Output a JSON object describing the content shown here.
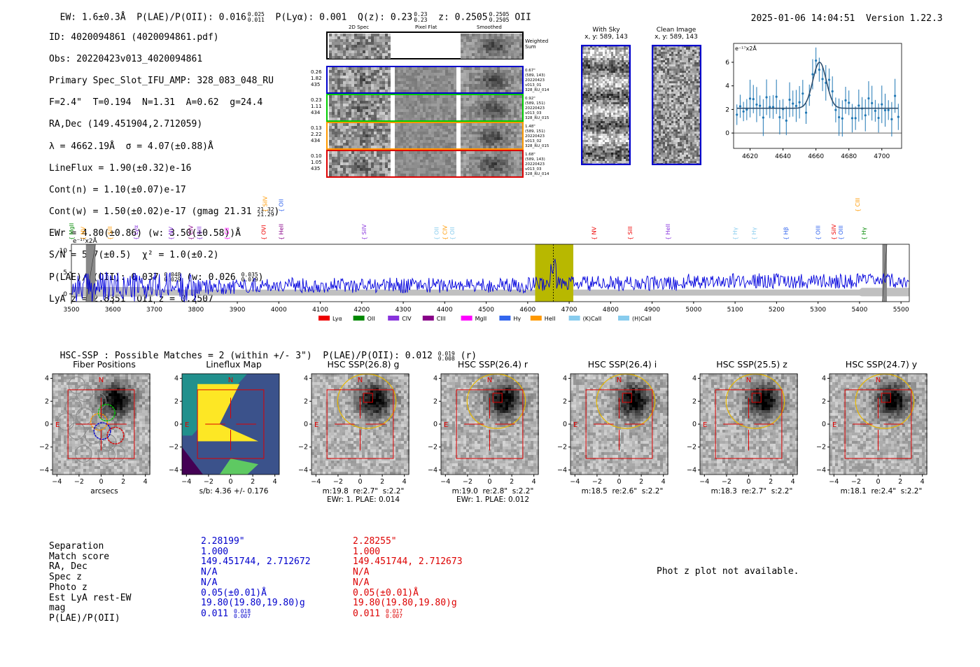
{
  "header": {
    "ew": "EW: 1.6±0.3Å",
    "plae_poii": "P(LAE)/P(OII): 0.016",
    "plae_poii_hi": "0.025",
    "plae_poii_lo": "0.011",
    "plya": "P(Lyα): 0.001",
    "qz": "Q(z): 0.23",
    "qz_hi": "0.23",
    "qz_lo": "0.23",
    "z": "z: 0.2505",
    "z_hi": "0.2505",
    "z_lo": "0.2505",
    "z_line": "OII",
    "timestamp": "2025-01-06 14:04:51",
    "version": "Version 1.22.3"
  },
  "info": {
    "id": "ID: 4020094861 (4020094861.pdf)",
    "obs": "Obs: 20220423v013_4020094861",
    "primary": "Primary Spec_Slot_IFU_AMP: 328_083_048_RU",
    "seeing": "F=2.4\"  T=0.194  N=1.31  A=0.62  g=24.4",
    "radec": "RA,Dec (149.451904,2.712059)",
    "lambda": "λ = 4662.19Å  σ = 4.07(±0.88)Å",
    "lineflux": "LineFlux = 1.90(±0.32)e-16",
    "contn": "Cont(n) = 1.10(±0.07)e-17",
    "contw": "Cont(w) = 1.50(±0.02)e-17 (gmag 21.31",
    "contw_hi": "21.32",
    "contw_lo": "21.29",
    "contw_end": ")",
    "ewr": "EWr = 4.80(±0.86) (w: 3.50(±0.58))Å",
    "sn": "S/N = 5.7(±0.5)  χ² = 1.0(±0.2)",
    "plae": "P(LAE)/P(OII): 0.037",
    "plae_hi": "0.048",
    "plae_lo": "0.029",
    "plae_w": "(w: 0.026",
    "plae_w_hi": "0.035",
    "plae_w_lo": "0.019",
    "plae_w_end": ")",
    "lyaz": "LyA z = 2.8351  OII z = 0.2507"
  },
  "cutouts": {
    "col_2d": "2D Spec",
    "col_flat": "Pixel Flat",
    "col_smooth": "Smoothed",
    "weighted": "Weighted\nSum",
    "rows": [
      {
        "left": [
          "0.26",
          "1.82",
          "435"
        ],
        "right": [
          "0.67\"",
          "(589, 143)",
          "20220423",
          "v013_01",
          "328_RU_014"
        ],
        "color": "#0000cc"
      },
      {
        "left": [
          "0.23",
          "1.11",
          "434"
        ],
        "right": [
          "0.92\"",
          "(589, 151)",
          "20220423",
          "v013_03",
          "328_RU_015"
        ],
        "color": "#00cc00"
      },
      {
        "left": [
          "0.13",
          "2.22",
          "434"
        ],
        "right": [
          "1.48\"",
          "(589, 151)",
          "20220423",
          "v013_02",
          "328_RU_015"
        ],
        "color": "#ff9900"
      },
      {
        "left": [
          "0.10",
          "1.05",
          "435"
        ],
        "right": [
          "1.68\"",
          "(589, 143)",
          "20220423",
          "v013_03",
          "328_RU_014"
        ],
        "color": "#dd0000"
      }
    ]
  },
  "sky": {
    "with_sky": "With Sky",
    "with_sky_xy": "x, y: 589, 143",
    "clean": "Clean Image",
    "clean_xy": "x, y: 589, 143"
  },
  "zoom_plot": {
    "ylabel": "e⁻¹⁷x2Å",
    "xticks": [
      "4620",
      "4640",
      "4660",
      "4680",
      "4700"
    ],
    "yticks": [
      "0",
      "2",
      "4",
      "6"
    ]
  },
  "spectrum": {
    "ylabel": "e⁻¹⁷x2Å",
    "xticks": [
      "3500",
      "3600",
      "3700",
      "3800",
      "3900",
      "4000",
      "4100",
      "4200",
      "4300",
      "4400",
      "4500",
      "4600",
      "4700",
      "4800",
      "4900",
      "5000",
      "5100",
      "5200",
      "5300",
      "5400",
      "5500"
    ],
    "yticks": [
      "0",
      "5",
      "10"
    ],
    "legend": [
      {
        "label": "Lyα",
        "color": "#ee0000"
      },
      {
        "label": "OII",
        "color": "#008800"
      },
      {
        "label": "CIV",
        "color": "#8833dd"
      },
      {
        "label": "CIII",
        "color": "#880088"
      },
      {
        "label": "MgII",
        "color": "#ff00ff"
      },
      {
        "label": "Hγ",
        "color": "#3366ee"
      },
      {
        "label": "HeII",
        "color": "#ff9900"
      },
      {
        "label": "(K)CaII",
        "color": "#88ccee"
      },
      {
        "label": "(H)CaII",
        "color": "#88ccee"
      }
    ],
    "line_labels": [
      {
        "text": "MgII",
        "wl": 3500,
        "color": "#008800",
        "row": 0
      },
      {
        "text": "NV",
        "wl": 3528,
        "color": "#ff9900",
        "row": 0
      },
      {
        "text": "SiII",
        "wl": 3593,
        "color": "#ff9900",
        "row": 0
      },
      {
        "text": "Lyα",
        "wl": 3655,
        "color": "#8833dd",
        "row": 0
      },
      {
        "text": "NV",
        "wl": 3740,
        "color": "#8833dd",
        "row": 0
      },
      {
        "text": "CIV",
        "wl": 3788,
        "color": "#880088",
        "row": 0
      },
      {
        "text": "SiII",
        "wl": 3808,
        "color": "#8833dd",
        "row": 0
      },
      {
        "text": "CII",
        "wl": 3875,
        "color": "#ff00ff",
        "row": 0
      },
      {
        "text": "OVI",
        "wl": 3963,
        "color": "#ee0000",
        "row": 0
      },
      {
        "text": "HeII",
        "wl": 4005,
        "color": "#880088",
        "row": 0
      },
      {
        "text": "SiIV",
        "wl": 3967,
        "color": "#ff9900",
        "row": 1
      },
      {
        "text": "OII",
        "wl": 4005,
        "color": "#3366ee",
        "row": 1
      },
      {
        "text": "SiIV",
        "wl": 4205,
        "color": "#8833dd",
        "row": 0
      },
      {
        "text": "OII",
        "wl": 4380,
        "color": "#88ccee",
        "row": 0
      },
      {
        "text": "CIV",
        "wl": 4400,
        "color": "#ff9900",
        "row": 0
      },
      {
        "text": "OII",
        "wl": 4418,
        "color": "#88ccee",
        "row": 0
      },
      {
        "text": "NV",
        "wl": 4760,
        "color": "#ee0000",
        "row": 0
      },
      {
        "text": "SiII",
        "wl": 4847,
        "color": "#ee0000",
        "row": 0
      },
      {
        "text": "HeII",
        "wl": 4938,
        "color": "#8833dd",
        "row": 0
      },
      {
        "text": "Hγ",
        "wl": 5100,
        "color": "#88ccee",
        "row": 0
      },
      {
        "text": "Hγ",
        "wl": 5145,
        "color": "#88ccee",
        "row": 0
      },
      {
        "text": "Hβ",
        "wl": 5222,
        "color": "#3366ee",
        "row": 0
      },
      {
        "text": "OIII",
        "wl": 5300,
        "color": "#3366ee",
        "row": 0
      },
      {
        "text": "SiIV",
        "wl": 5338,
        "color": "#ee0000",
        "row": 0
      },
      {
        "text": "OIII",
        "wl": 5355,
        "color": "#3366ee",
        "row": 0
      },
      {
        "text": "Hγ",
        "wl": 5410,
        "color": "#008800",
        "row": 0
      },
      {
        "text": "CIII",
        "wl": 5395,
        "color": "#ff9900",
        "row": 1
      }
    ]
  },
  "hsc": {
    "matches": "HSC-SSP : Possible Matches = 2 (within +/- 3\")  P(LAE)/P(OII): 0.012",
    "matches_hi": "0.019",
    "matches_lo": "0.008",
    "matches_band": "(r)",
    "panels": [
      {
        "title": "Fiber Positions",
        "xlabel": "arcsecs",
        "xlabel2": ""
      },
      {
        "title": "Lineflux Map",
        "xlabel": "s/b: 4.36 +/- 0.176",
        "xlabel2": ""
      },
      {
        "title": "HSC SSP(26.8) g",
        "xlabel": "m:19.8  re:2.7\"  s:2.2\"",
        "xlabel2": "EWr: 1. PLAE: 0.014"
      },
      {
        "title": "HSC SSP(26.4) r",
        "xlabel": "m:19.0  re:2.8\"  s:2.2\"",
        "xlabel2": "EWr: 1. PLAE: 0.012"
      },
      {
        "title": "HSC SSP(26.4) i",
        "xlabel": "m:18.5  re:2.6\"  s:2.2\"",
        "xlabel2": ""
      },
      {
        "title": "HSC SSP(25.5) z",
        "xlabel": "m:18.3  re:2.7\"  s:2.2\"",
        "xlabel2": ""
      },
      {
        "title": "HSC SSP(24.7) y",
        "xlabel": "m:18.1  re:2.4\"  s:2.2\"",
        "xlabel2": ""
      }
    ],
    "ticks": [
      "−4",
      "−2",
      "0",
      "2",
      "4"
    ],
    "north": "N",
    "east": "E"
  },
  "table": {
    "labels": [
      "Separation",
      "Match score",
      "RA, Dec",
      "Spec z",
      "Photo z",
      "Est LyA rest-EW",
      "mag",
      "P(LAE)/P(OII)"
    ],
    "blue": [
      "2.28199\"",
      "1.000",
      "149.451744, 2.712672",
      "N/A",
      "N/A",
      "0.05(±0.01)Å",
      "19.80(19.80,19.80)g",
      "0.011"
    ],
    "blue_hi": "0.018",
    "blue_lo": "0.007",
    "red": [
      "2.28255\"",
      "1.000",
      "149.451744, 2.712673",
      "N/A",
      "N/A",
      "0.05(±0.01)Å",
      "19.80(19.80,19.80)g",
      "0.011"
    ],
    "red_hi": "0.017",
    "red_lo": "0.007",
    "photz_msg": "Phot z plot not available."
  }
}
